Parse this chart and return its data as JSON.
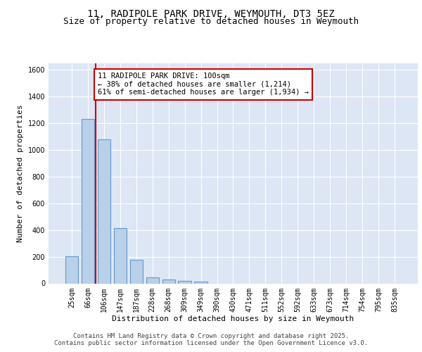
{
  "title_line1": "11, RADIPOLE PARK DRIVE, WEYMOUTH, DT3 5EZ",
  "title_line2": "Size of property relative to detached houses in Weymouth",
  "xlabel": "Distribution of detached houses by size in Weymouth",
  "ylabel": "Number of detached properties",
  "categories": [
    "25sqm",
    "66sqm",
    "106sqm",
    "147sqm",
    "187sqm",
    "228sqm",
    "268sqm",
    "309sqm",
    "349sqm",
    "390sqm",
    "430sqm",
    "471sqm",
    "511sqm",
    "552sqm",
    "592sqm",
    "633sqm",
    "673sqm",
    "714sqm",
    "754sqm",
    "795sqm",
    "835sqm"
  ],
  "values": [
    205,
    1235,
    1080,
    415,
    178,
    45,
    28,
    18,
    12,
    0,
    0,
    0,
    0,
    0,
    0,
    0,
    0,
    0,
    0,
    0,
    0
  ],
  "bar_color": "#b8d0e8",
  "bar_edge_color": "#6699cc",
  "red_line_color": "#cc0000",
  "annotation_text": "11 RADIPOLE PARK DRIVE: 100sqm\n← 38% of detached houses are smaller (1,214)\n61% of semi-detached houses are larger (1,934) →",
  "annotation_box_color": "#ffffff",
  "annotation_border_color": "#cc0000",
  "ylim": [
    0,
    1650
  ],
  "yticks": [
    0,
    200,
    400,
    600,
    800,
    1000,
    1200,
    1400,
    1600
  ],
  "background_color": "#dce6f5",
  "grid_color": "#ffffff",
  "footer_text": "Contains HM Land Registry data © Crown copyright and database right 2025.\nContains public sector information licensed under the Open Government Licence v3.0.",
  "title_fontsize": 10,
  "subtitle_fontsize": 9,
  "label_fontsize": 8,
  "tick_fontsize": 7,
  "footer_fontsize": 6.5,
  "annotation_fontsize": 7.5
}
